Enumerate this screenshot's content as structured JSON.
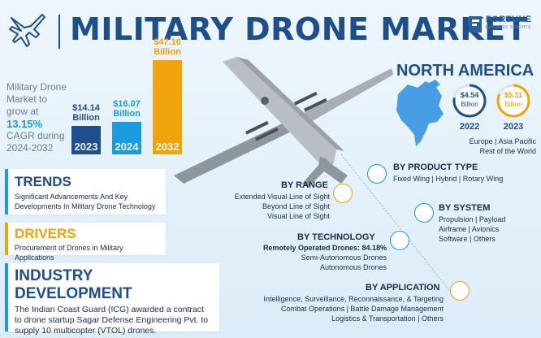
{
  "header": {
    "title": "MILITARY DRONE MARKET",
    "brand_name": "FORTUNE",
    "brand_sub": "BUSINESS INSIGHTS"
  },
  "growth": {
    "line1": "Military Drone",
    "line2": "Market to",
    "line3": "grow at",
    "cagr": "13.15%",
    "line4": "CAGR during",
    "line5": "2024-2032"
  },
  "chart_data": {
    "type": "bar",
    "categories": [
      "2023",
      "2024",
      "2032"
    ],
    "values": [
      14.14,
      16.07,
      47.16
    ],
    "value_labels": [
      "$14.14",
      "$16.07",
      "$47.16"
    ],
    "unit_label": "Billion",
    "colors": [
      "#1f4e8c",
      "#1a9be0",
      "#f0a30a"
    ]
  },
  "trends": {
    "title": "TRENDS",
    "text": "Significant Advancements And Key Developments In Military Drone Technology"
  },
  "drivers": {
    "title": "DRIVERS",
    "text": "Procurement of Drones in Military Applications"
  },
  "industry": {
    "title": "INDUSTRY DEVELOPMENT",
    "text": "The Indian Coast Guard (ICG) awarded a contract to drone startup Sagar Defense Engineering Pvt. to supply 10 multicopter (VTOL) drones."
  },
  "north_america": {
    "title": "NORTH AMERICA",
    "rings": [
      {
        "value": "$4.54",
        "unit": "Billion",
        "year": "2022",
        "color": "#1f4e8c",
        "fill": 0.78
      },
      {
        "value": "$5.11",
        "unit": "Billion",
        "year": "2023",
        "color": "#f0a30a",
        "fill": 0.82
      }
    ],
    "regions_line1": "Europe  |  Asia Pacific",
    "regions_line2": "Rest of the World"
  },
  "segments": {
    "product_type": {
      "title": "BY PRODUCT TYPE",
      "text": "Fixed Wing  |  Hybrid  |  Rotary Wing"
    },
    "range": {
      "title": "BY RANGE",
      "items": [
        "Extended Visual Line of Sight",
        "Beyond Line of Sight",
        "Visual Line of Sight"
      ]
    },
    "system": {
      "title": "BY SYSTEM",
      "items": [
        "Propulsion  |  Payload",
        "Airframe  |  Avionics",
        "Software  |  Others"
      ]
    },
    "technology": {
      "title": "BY TECHNOLOGY",
      "highlight": "Remotely Operated Drones: 84.18%",
      "items": [
        "Semi-Autonomous Drones",
        "Autonomous Drones"
      ]
    },
    "application": {
      "title": "BY APPLICATION",
      "items": [
        "Intelligence, Surveillance, Reconnaissance, & Targeting",
        "Combat Operations  |  Battle Damage Management",
        "Logistics & Transportation  |  Others"
      ]
    }
  }
}
